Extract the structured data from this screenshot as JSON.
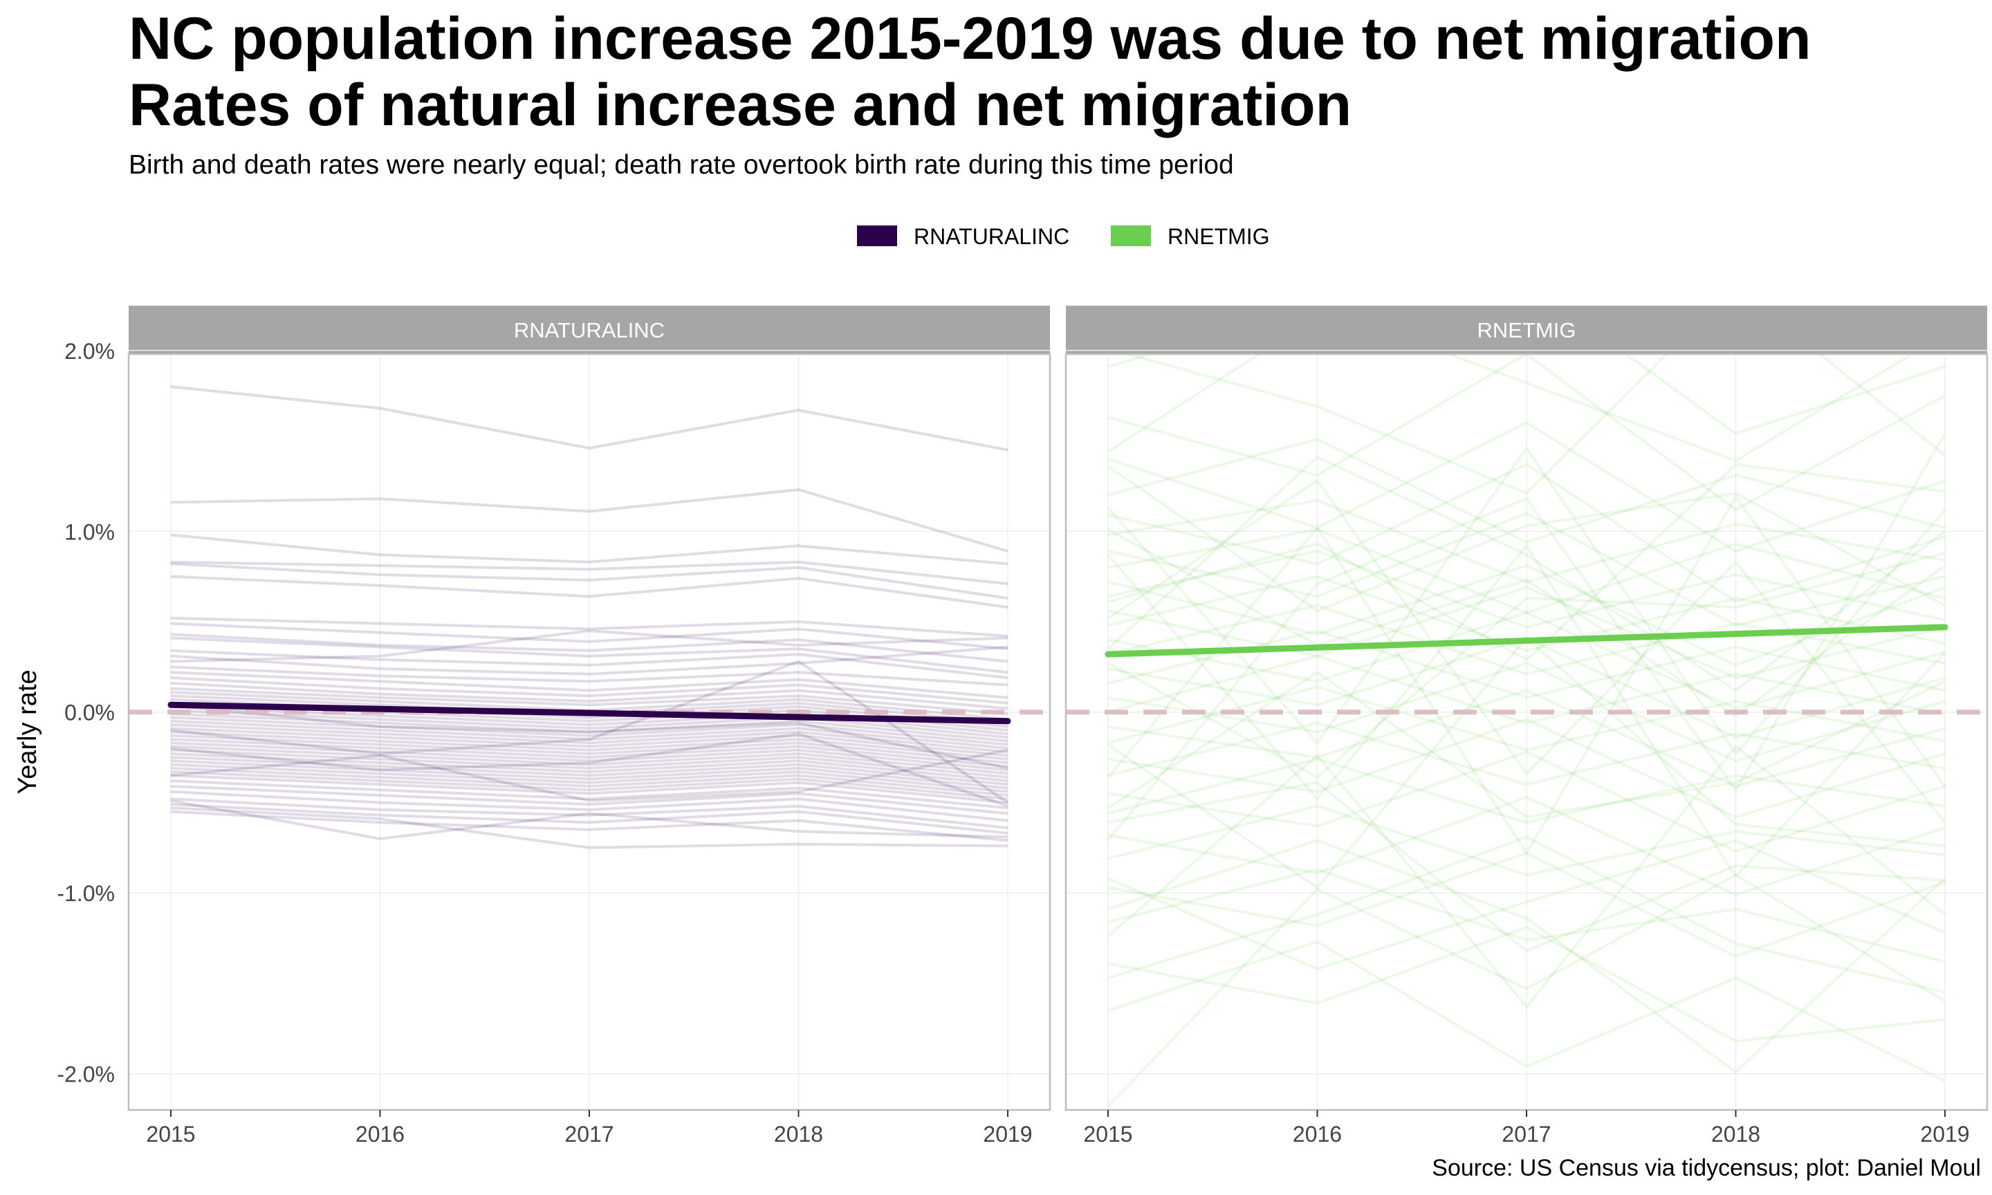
{
  "title_line1": "NC population increase 2015-2019 was due to net migration",
  "title_line2": "Rates of natural increase and net migration",
  "subtitle": "Birth and death rates were nearly equal; death rate overtook birth rate during this time period",
  "caption": "Source: US Census via tidycensus; plot: Daniel Moul",
  "colors": {
    "natural": "#2d004b",
    "migration": "#6cce4e",
    "zero_line": "#d8b8bc",
    "strip": "#a6a6a6",
    "panel_border": "#bdbdbd",
    "grid": "#eeeeee"
  },
  "chart_data": {
    "type": "line",
    "x": [
      2015,
      2016,
      2017,
      2018,
      2019
    ],
    "y_ticks": [
      -0.02,
      -0.01,
      0.0,
      0.01,
      0.02
    ],
    "y_tick_labels": [
      "-2.0%",
      "-1.0%",
      "0.0%",
      "1.0%",
      "2.0%"
    ],
    "ylim": [
      -0.022,
      0.0198
    ],
    "ylabel": "Yearly rate",
    "xlabel": "",
    "reference_line": 0.0,
    "legend": {
      "position": "top",
      "entries": [
        {
          "label": "RNATURALINC",
          "color": "#2d004b"
        },
        {
          "label": "RNETMIG",
          "color": "#6cce4e"
        }
      ]
    },
    "panels": [
      {
        "strip": "RNATURALINC",
        "trend": {
          "x": [
            2015,
            2019
          ],
          "y": [
            0.0004,
            -0.0005
          ]
        },
        "series": [
          [
            0.018,
            0.0168,
            0.0146,
            0.0167,
            0.0145
          ],
          [
            0.0116,
            0.0118,
            0.0111,
            0.0123,
            0.0089
          ],
          [
            0.0098,
            0.0087,
            0.0083,
            0.0092,
            0.0082
          ],
          [
            0.0083,
            0.0081,
            0.0079,
            0.0083,
            0.0071
          ],
          [
            0.0082,
            0.0076,
            0.0073,
            0.008,
            0.0063
          ],
          [
            0.0075,
            0.007,
            0.0064,
            0.0074,
            0.0058
          ],
          [
            0.0052,
            0.0049,
            0.0046,
            0.005,
            0.0042
          ],
          [
            0.0049,
            0.0044,
            0.0039,
            0.0046,
            0.0035
          ],
          [
            0.0043,
            0.0037,
            0.0034,
            0.004,
            0.0028
          ],
          [
            0.0041,
            0.0036,
            0.0031,
            0.0035,
            0.0022
          ],
          [
            0.0034,
            0.0029,
            0.0026,
            0.0032,
            0.0019
          ],
          [
            0.0031,
            0.0024,
            0.0021,
            0.0027,
            0.0036
          ],
          [
            0.0025,
            0.002,
            0.0017,
            0.0022,
            0.0015
          ],
          [
            0.0022,
            0.0017,
            0.0012,
            0.0018,
            0.0008
          ],
          [
            0.0019,
            0.0013,
            0.0009,
            0.0015,
            0.0005
          ],
          [
            0.0016,
            0.001,
            0.0006,
            0.0012,
            0.0002
          ],
          [
            0.0013,
            0.0008,
            0.0004,
            0.0009,
            -0.0001
          ],
          [
            0.0011,
            0.0006,
            0.0001,
            0.0007,
            -0.0004
          ],
          [
            0.0009,
            0.0004,
            -0.0001,
            0.0005,
            -0.0006
          ],
          [
            0.0007,
            0.0002,
            -0.0003,
            0.0003,
            -0.0008
          ],
          [
            0.0005,
            0.0,
            -0.0005,
            0.0001,
            -0.001
          ],
          [
            0.0003,
            -0.0002,
            -0.0007,
            -0.0001,
            -0.0012
          ],
          [
            0.0001,
            -0.0004,
            -0.0009,
            -0.0003,
            -0.0014
          ],
          [
            -0.0001,
            -0.0006,
            -0.0011,
            -0.0005,
            -0.0016
          ],
          [
            -0.0003,
            -0.0008,
            -0.0013,
            -0.0007,
            -0.0018
          ],
          [
            -0.0005,
            -0.001,
            -0.0015,
            -0.0009,
            -0.002
          ],
          [
            -0.0007,
            -0.0012,
            -0.0017,
            -0.0011,
            -0.0022
          ],
          [
            -0.0009,
            -0.0014,
            -0.0019,
            -0.0013,
            -0.0024
          ],
          [
            -0.0011,
            -0.0016,
            -0.0021,
            -0.0015,
            -0.0026
          ],
          [
            -0.0013,
            -0.0018,
            -0.0023,
            -0.0017,
            -0.0028
          ],
          [
            -0.0015,
            -0.002,
            -0.0025,
            -0.0019,
            -0.003
          ],
          [
            -0.0017,
            -0.0022,
            -0.0027,
            -0.0021,
            -0.0032
          ],
          [
            -0.0019,
            -0.0024,
            -0.0029,
            -0.0023,
            -0.0034
          ],
          [
            -0.0021,
            -0.0026,
            -0.0031,
            -0.0025,
            -0.0036
          ],
          [
            -0.0023,
            -0.0028,
            -0.0033,
            -0.0027,
            -0.0038
          ],
          [
            -0.0025,
            -0.003,
            -0.0035,
            -0.0029,
            -0.004
          ],
          [
            -0.0027,
            -0.0032,
            -0.0037,
            -0.0031,
            -0.0042
          ],
          [
            -0.0029,
            -0.0034,
            -0.0039,
            -0.0033,
            -0.0044
          ],
          [
            -0.0031,
            -0.0036,
            -0.0041,
            -0.0035,
            -0.0046
          ],
          [
            -0.0033,
            -0.0038,
            -0.0043,
            -0.0037,
            -0.0048
          ],
          [
            -0.0035,
            -0.004,
            -0.0045,
            -0.0039,
            -0.005
          ],
          [
            -0.0038,
            -0.0043,
            -0.0048,
            -0.0042,
            -0.0053
          ],
          [
            -0.0041,
            -0.0046,
            -0.0051,
            -0.0045,
            -0.0056
          ],
          [
            -0.0044,
            -0.005,
            -0.0054,
            -0.0048,
            -0.006
          ],
          [
            -0.0048,
            -0.0054,
            -0.0057,
            -0.0052,
            -0.0064
          ],
          [
            -0.0051,
            -0.0057,
            -0.0061,
            -0.0055,
            -0.0067
          ],
          [
            -0.0055,
            -0.0061,
            -0.0065,
            -0.006,
            -0.0071
          ],
          [
            -0.0049,
            -0.007,
            -0.0056,
            -0.0066,
            -0.0069
          ],
          [
            -0.0053,
            -0.0059,
            -0.0075,
            -0.0073,
            -0.0074
          ],
          [
            -0.002,
            -0.0032,
            -0.0028,
            -0.0012,
            -0.0052
          ],
          [
            -0.001,
            -0.0023,
            -0.0015,
            0.0028,
            -0.005
          ],
          [
            0.0004,
            -0.0008,
            -0.0011,
            -0.0006,
            -0.0031
          ],
          [
            -0.0035,
            -0.0024,
            -0.0049,
            -0.0044,
            -0.0021
          ],
          [
            0.0028,
            0.0031,
            0.0045,
            0.0037,
            0.0041
          ]
        ]
      },
      {
        "strip": "RNETMIG",
        "trend": {
          "x": [
            2015,
            2019
          ],
          "y": [
            0.0032,
            0.0047
          ]
        },
        "series": [
          [
            0.0191,
            0.0225,
            0.0182,
            0.0139,
            0.0209
          ],
          [
            0.0163,
            0.0131,
            0.0198,
            0.0112,
            0.0175
          ],
          [
            0.014,
            0.0102,
            0.016,
            0.0089,
            0.0128
          ],
          [
            0.012,
            0.0151,
            0.0094,
            0.0131,
            0.0102
          ],
          [
            0.0109,
            0.0082,
            0.0137,
            0.0061,
            0.0097
          ],
          [
            0.0098,
            0.0117,
            0.0072,
            0.0104,
            0.0084
          ],
          [
            0.0089,
            0.0064,
            0.011,
            0.0048,
            0.0075
          ],
          [
            0.008,
            0.0101,
            0.0055,
            0.0093,
            0.0063
          ],
          [
            0.0072,
            0.0043,
            0.0081,
            0.0026,
            0.0069
          ],
          [
            0.0064,
            0.0089,
            0.0047,
            0.0076,
            0.0051
          ],
          [
            0.0056,
            0.0031,
            0.0069,
            0.0019,
            0.0047
          ],
          [
            0.0048,
            0.0075,
            0.0034,
            0.0063,
            0.0038
          ],
          [
            0.004,
            0.0017,
            0.0055,
            0.0002,
            0.0033
          ],
          [
            0.0032,
            0.0059,
            0.0021,
            0.0049,
            0.0027
          ],
          [
            0.0024,
            0.0004,
            0.0041,
            -0.0014,
            0.0019
          ],
          [
            0.0016,
            0.0045,
            0.0008,
            0.0036,
            0.0012
          ],
          [
            0.0008,
            -0.0011,
            0.0027,
            -0.0027,
            0.0006
          ],
          [
            0.0,
            0.0031,
            -0.0006,
            0.0021,
            -0.0001
          ],
          [
            -0.0008,
            -0.0025,
            0.0012,
            -0.0041,
            -0.0009
          ],
          [
            -0.0017,
            0.0014,
            -0.0021,
            0.0006,
            -0.0016
          ],
          [
            -0.0026,
            -0.0044,
            -0.0004,
            -0.0058,
            -0.0023
          ],
          [
            -0.0035,
            -0.0006,
            -0.004,
            -0.0012,
            -0.0031
          ],
          [
            -0.0045,
            -0.0063,
            -0.0022,
            -0.0077,
            -0.0041
          ],
          [
            -0.0056,
            -0.0026,
            -0.0061,
            -0.0035,
            -0.0052
          ],
          [
            -0.0068,
            -0.0089,
            -0.0047,
            -0.0101,
            -0.0064
          ],
          [
            -0.0081,
            -0.0052,
            -0.009,
            -0.0066,
            -0.0079
          ],
          [
            -0.0097,
            -0.0118,
            -0.0078,
            -0.0135,
            -0.0094
          ],
          [
            -0.0116,
            -0.0087,
            -0.0126,
            -0.0109,
            -0.0138
          ],
          [
            -0.0139,
            -0.0161,
            -0.0119,
            -0.0182,
            -0.017
          ],
          [
            -0.0165,
            -0.0127,
            -0.0196,
            -0.0147,
            -0.0204
          ],
          [
            -0.0218,
            -0.0098,
            -0.0153,
            -0.009,
            -0.016
          ],
          [
            0.0144,
            0.0219,
            0.0238,
            0.0154,
            0.0191
          ],
          [
            0.0201,
            0.0169,
            0.0121,
            0.0236,
            0.0142
          ],
          [
            -0.0124,
            -0.0024,
            -0.0163,
            -0.0019,
            -0.0112
          ],
          [
            0.0052,
            0.0128,
            -0.0034,
            0.0083,
            -0.0061
          ],
          [
            -0.0071,
            0.0071,
            0.0118,
            -0.0043,
            0.0154
          ],
          [
            0.0087,
            -0.0048,
            0.0092,
            -0.0091,
            0.0033
          ],
          [
            -0.0036,
            0.0102,
            -0.0078,
            0.0119,
            -0.0041
          ],
          [
            0.0113,
            -0.0017,
            0.0146,
            -0.0023,
            0.0112
          ],
          [
            -0.0092,
            -0.0142,
            -0.0105,
            -0.0071,
            -0.0122
          ],
          [
            0.0027,
            -0.0036,
            0.0063,
            0.0058,
            0.0088
          ],
          [
            -0.0053,
            0.0022,
            -0.0058,
            -0.0039,
            0.0017
          ],
          [
            0.0136,
            0.0056,
            0.0103,
            0.0121,
            0.0059
          ],
          [
            -0.0109,
            -0.0071,
            -0.0114,
            -0.0199,
            -0.0092
          ],
          [
            0.0061,
            0.0093,
            0.0029,
            0.0137,
            0.0122
          ],
          [
            -0.0018,
            -0.0097,
            0.0041,
            -0.0062,
            -0.0074
          ],
          [
            0.0101,
            0.0037,
            0.0073,
            -0.0002,
            0.0081
          ],
          [
            -0.0147,
            -0.0112,
            -0.0069,
            -0.0128,
            -0.0155
          ],
          [
            0.0035,
            0.0141,
            0.0087,
            0.0012,
            0.01
          ],
          [
            -0.0061,
            -0.0039,
            -0.0132,
            -0.0085,
            -0.0093
          ]
        ]
      }
    ]
  }
}
